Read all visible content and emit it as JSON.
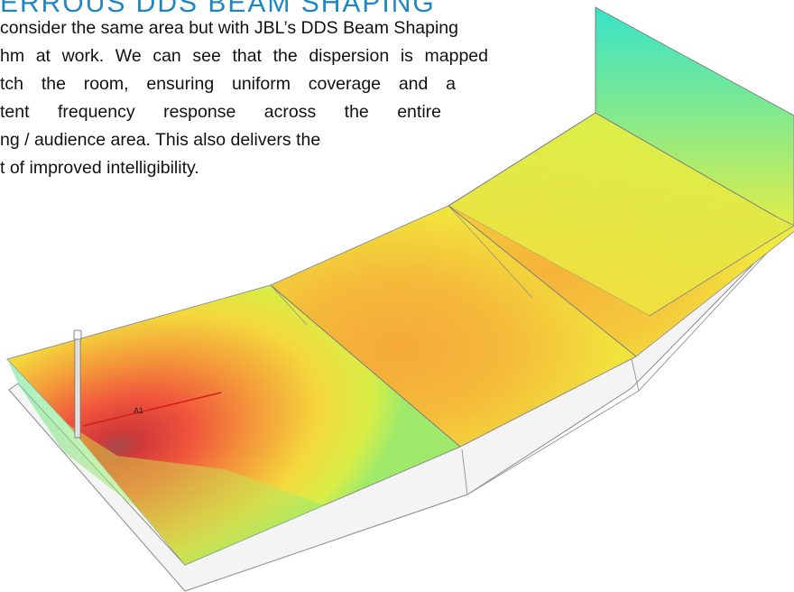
{
  "heading": "ERROUS DDS BEAM SHAPING",
  "paragraph": {
    "lines": [
      "consider the same area but with JBL’s DDS Beam Shaping",
      "hm at work. We can see that the dispersion is mapped",
      "tch the room, ensuring uniform coverage and a",
      "tent frequency response across the entire",
      "ng / audience area. This also delivers the",
      "t of improved intelligibility."
    ]
  },
  "diagram": {
    "array_label": "A1",
    "colors": {
      "low": "#36e2a0",
      "mid": "#f2ef3a",
      "high": "#f3aa3a",
      "peak": "#e53a3a",
      "core": "#a84a4a",
      "aim_line": "#d81c1c",
      "heading": "#1f86c4"
    }
  }
}
